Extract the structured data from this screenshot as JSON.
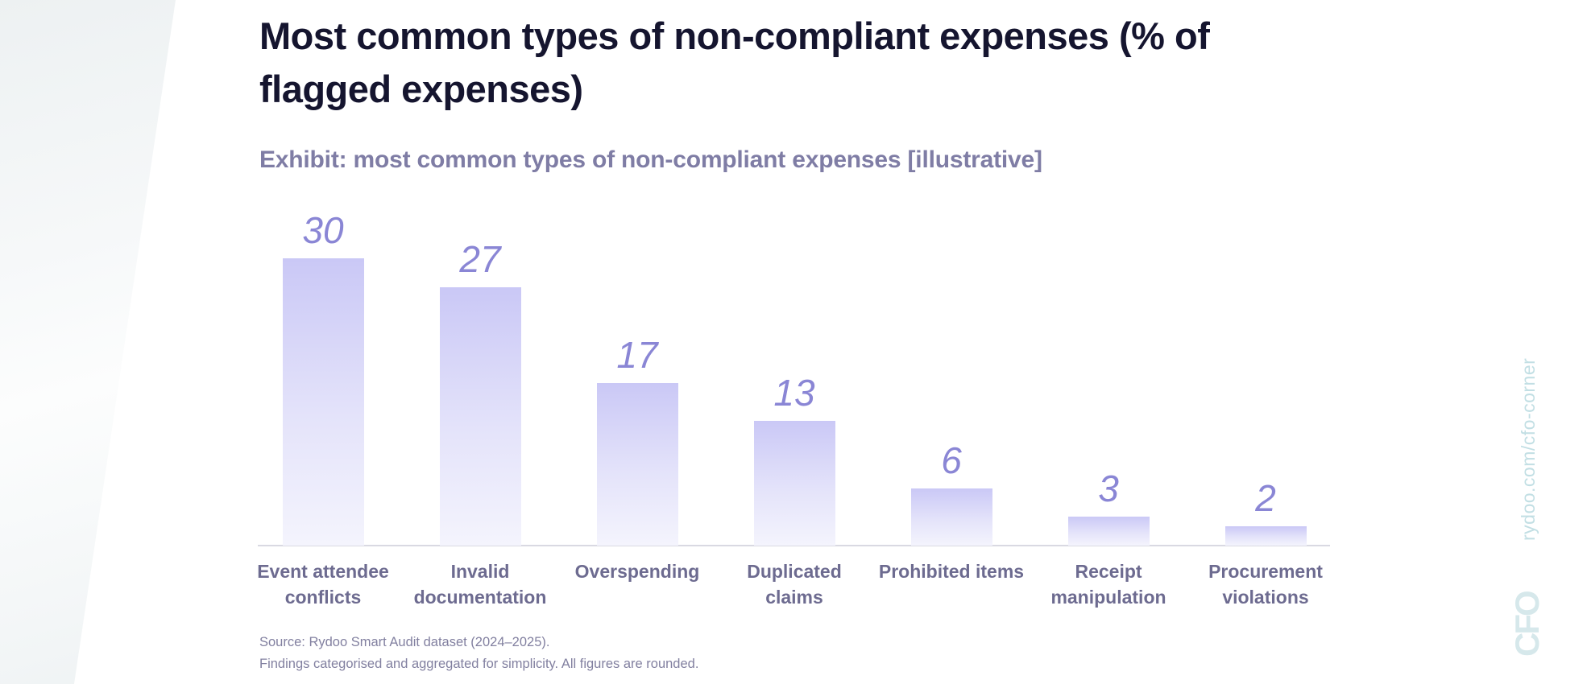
{
  "page": {
    "title_lines": [
      "Most common types of non-compliant expenses (% of",
      "flagged expenses)"
    ],
    "subtitle": "Exhibit: most common types of non-compliant expenses [illustrative]",
    "source_lines": [
      "Source: Rydoo Smart Audit dataset (2024–2025).",
      "Findings categorised and aggregated for simplicity. All figures are rounded."
    ],
    "watermark": {
      "url_text": "rydoo.com/cfo-corner",
      "logo_text": "CFO"
    }
  },
  "colors": {
    "title": "#15152f",
    "subtitle": "#7f7da5",
    "bar_gradient_top": "#cac8f6",
    "bar_gradient_bottom": "#f4f4fd",
    "value_label": "#8a86d5",
    "axis_label": "#6d6b90",
    "source_text": "#8280a0",
    "watermark_text": "#c2dfe4",
    "baseline": "#d9d9e2"
  },
  "chart_data": {
    "type": "bar",
    "title": "Most common types of non-compliant expenses (% of flagged expenses)",
    "subtitle": "Exhibit: most common types of non-compliant expenses [illustrative]",
    "categories": [
      "Event attendee conflicts",
      "Invalid documentation",
      "Overspending",
      "Duplicated claims",
      "Prohibited items",
      "Receipt manipulation",
      "Procurement violations"
    ],
    "category_lines": [
      [
        "Event attendee",
        "conflicts"
      ],
      [
        "Invalid",
        "documentation"
      ],
      [
        "Overspending"
      ],
      [
        "Duplicated",
        "claims"
      ],
      [
        "Prohibited items"
      ],
      [
        "Receipt",
        "manipulation"
      ],
      [
        "Procurement",
        "violations"
      ]
    ],
    "values": [
      30,
      27,
      17,
      13,
      6,
      3,
      2
    ],
    "unit": "% of flagged expenses",
    "xlabel": "",
    "ylabel": "",
    "ylim": [
      0,
      30
    ],
    "grid": false,
    "legend": "none",
    "data_labels": true
  }
}
